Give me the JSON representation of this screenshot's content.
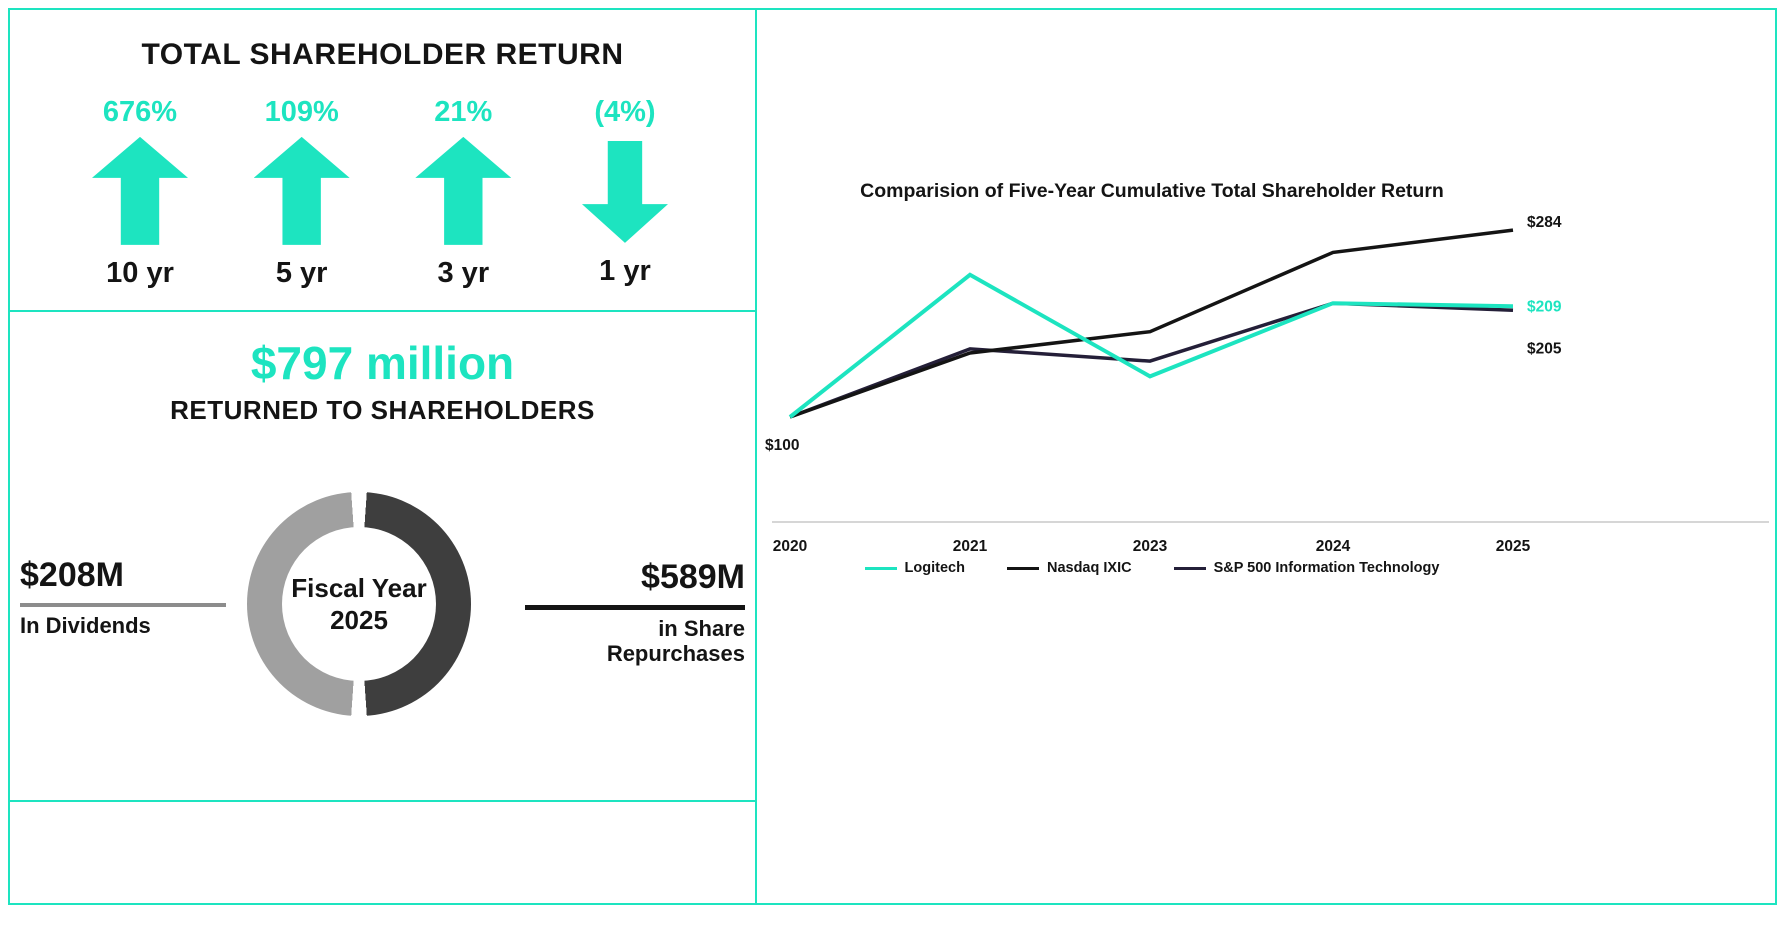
{
  "colors": {
    "accent": "#1de4c0",
    "text_dark": "#141414",
    "donut_dark": "#3e3e3e",
    "donut_gray": "#a0a0a0",
    "dividends_bar": "#8c8c8c",
    "repurchases_bar": "#141414",
    "axis": "#c8c8c8"
  },
  "left": {
    "tsr": {
      "title": "TOTAL SHAREHOLDER RETURN",
      "items": [
        {
          "pct": "676%",
          "label": "10 yr",
          "dir": "up"
        },
        {
          "pct": "109%",
          "label": "5 yr",
          "dir": "up"
        },
        {
          "pct": "21%",
          "label": "3 yr",
          "dir": "up"
        },
        {
          "pct": "(4%)",
          "label": "1 yr",
          "dir": "down"
        }
      ]
    },
    "returned": {
      "amount": "$797 million",
      "subtitle": "RETURNED TO SHAREHOLDERS",
      "donut_center": {
        "line1": "Fiscal Year",
        "line2": "2025"
      },
      "dividends": {
        "amount": "$208M",
        "label": "In Dividends"
      },
      "repurchases": {
        "amount": "$589M",
        "label": "in Share Repurchases"
      }
    }
  },
  "chart_data": [
    {
      "type": "line",
      "title": "Comparision of Five-Year Cumulative Total Shareholder Return",
      "x_labels": [
        "2020",
        "2021",
        "2023",
        "2024",
        "2025"
      ],
      "start_label": "$100",
      "ylim": [
        100,
        300
      ],
      "grid": false,
      "legend_position": "bottom",
      "series": [
        {
          "name": "Logitech",
          "color": "#1de4c0",
          "values": [
            100,
            240,
            140,
            212,
            209
          ],
          "end_label": "$209",
          "label_color": "#1de4c0",
          "label_dy": 0,
          "width": 4
        },
        {
          "name": "Nasdaq IXIC",
          "color": "#141414",
          "values": [
            100,
            163,
            184,
            262,
            284
          ],
          "end_label": "$284",
          "label_dy": -8,
          "width": 3.5
        },
        {
          "name": "S&P 500 Information Technology",
          "color": "#241f38",
          "values": [
            100,
            167,
            155,
            212,
            205
          ],
          "end_label": "$205",
          "label_dy": 38,
          "width": 3.5
        }
      ]
    },
    {
      "type": "pie",
      "title": "Fiscal Year 2025",
      "labels": [
        "In Dividends",
        "in Share Repurchases"
      ],
      "values": [
        208,
        589
      ],
      "value_labels": [
        "$208M",
        "$589M"
      ],
      "colors": [
        "#a0a0a0",
        "#3e3e3e"
      ]
    }
  ]
}
